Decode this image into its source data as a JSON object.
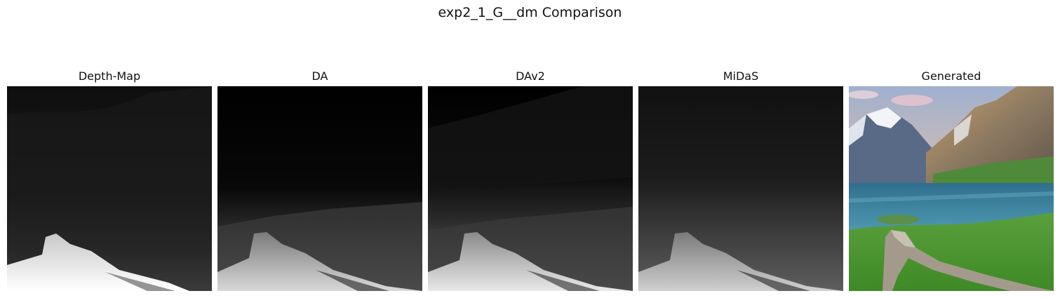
{
  "figure": {
    "title": "exp2_1_G__dm Comparison",
    "panels": [
      {
        "title": "Depth-Map"
      },
      {
        "title": "DA"
      },
      {
        "title": "DAv2"
      },
      {
        "title": "MiDaS"
      },
      {
        "title": "Generated"
      }
    ]
  }
}
